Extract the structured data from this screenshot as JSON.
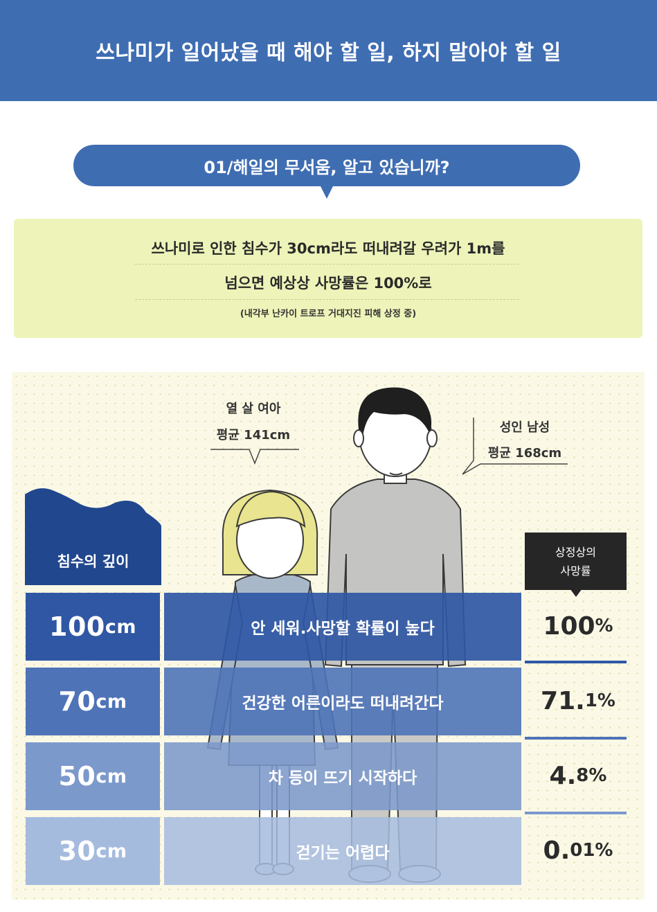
{
  "header": {
    "title": "쓰나미가 일어났을 때 해야 할 일, 하지 말아야 할 일"
  },
  "section": {
    "title": "01/해일의 무서움, 알고 있습니까?"
  },
  "info": {
    "line1": "쓰나미로 인한 침수가 30cm라도 떠내려갈 우려가 1m를",
    "line2": "넘으면 예상상 사망률은 100%로",
    "note": "(내각부 난카이 트로프 거대지진 피해 상정 중)"
  },
  "labels": {
    "child_line1": "열 살 여아",
    "child_line2": "평균 141cm",
    "man_line1": "성인 남성",
    "man_line2": "평균 168cm"
  },
  "depth_header": "침수의 깊이",
  "rate_header": {
    "line1": "상정상의",
    "line2": "사망률"
  },
  "rows": [
    {
      "depth": "100",
      "depth_unit": "cm",
      "desc": "안 세워.사망할 확률이 높다",
      "rate_main": "100",
      "rate_unit": "%",
      "color": "#2f57a4"
    },
    {
      "depth": "70",
      "depth_unit": "cm",
      "desc": "건강한 어른이라도 떠내려간다",
      "rate_main": "71.",
      "rate_unit": "1%",
      "color": "#4e73b7"
    },
    {
      "depth": "50",
      "depth_unit": "cm",
      "desc": "차 등이 뜨기 시작하다",
      "rate_main": "4.",
      "rate_unit": "8%",
      "color": "#7c99cb"
    },
    {
      "depth": "30",
      "depth_unit": "cm",
      "desc": "걷기는 어렵다",
      "rate_main": "0.",
      "rate_unit": "01%",
      "color": "#a5bbde"
    }
  ],
  "colors": {
    "header_blue": "#3f6db2",
    "info_bg": "#eef4b9",
    "panel_bg": "#fbf9e6",
    "rate_header_bg": "#262626"
  }
}
